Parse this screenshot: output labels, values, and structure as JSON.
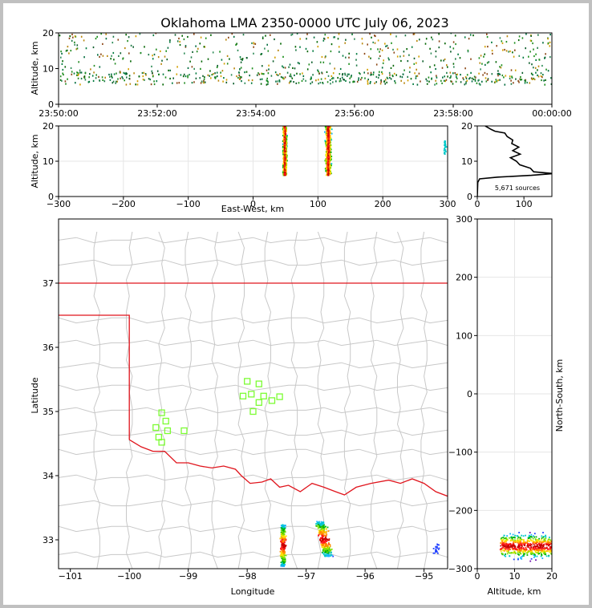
{
  "chart_data": [
    {
      "id": "time_height",
      "type": "scatter",
      "title": "Oklahoma LMA 2350-0000 UTC July 06, 2023",
      "xlabel": "",
      "ylabel": "Altitude, km",
      "x_ticks": [
        "23:50:00",
        "23:52:00",
        "23:54:00",
        "23:56:00",
        "23:58:00",
        "00:00:00"
      ],
      "xlim_minutes": [
        0,
        10
      ],
      "ylim": [
        0,
        20
      ],
      "y_ticks": [
        0,
        10,
        20
      ]
    },
    {
      "id": "ew_altitude",
      "type": "scatter",
      "xlabel": "East-West, km",
      "ylabel": "Altitude, km",
      "xlim": [
        -300,
        300
      ],
      "x_ticks": [
        -300,
        -200,
        -100,
        0,
        100,
        200,
        300
      ],
      "ylim": [
        0,
        20
      ],
      "y_ticks": [
        0,
        10,
        20
      ],
      "clusters": [
        {
          "x": 48,
          "ymin": 6,
          "ymax": 20
        },
        {
          "x": 115,
          "ymin": 6,
          "ymax": 20
        },
        {
          "x": 295,
          "ymin": 12,
          "ymax": 16
        }
      ]
    },
    {
      "id": "altitude_histogram",
      "type": "line",
      "annotation": "5,671 sources",
      "xlim": [
        0,
        160
      ],
      "x_ticks": [
        0,
        100
      ],
      "ylim": [
        0,
        20
      ],
      "y_ticks": [
        0,
        10,
        20
      ],
      "profile": [
        [
          20,
          17
        ],
        [
          19,
          30
        ],
        [
          18.5,
          42
        ],
        [
          18,
          55
        ],
        [
          17,
          68
        ],
        [
          16,
          72
        ],
        [
          15,
          78
        ],
        [
          14,
          85
        ],
        [
          13,
          80
        ],
        [
          12,
          88
        ],
        [
          11,
          75
        ],
        [
          10,
          80
        ],
        [
          9,
          95
        ],
        [
          8,
          110
        ],
        [
          7,
          125
        ],
        [
          6.5,
          160
        ],
        [
          6,
          120
        ],
        [
          5.5,
          40
        ],
        [
          5,
          5
        ],
        [
          4,
          1
        ],
        [
          0,
          0
        ]
      ]
    },
    {
      "id": "plan_view",
      "type": "scatter",
      "xlabel": "Longitude",
      "ylabel": "Latitude",
      "xlim": [
        -101.2,
        -94.6
      ],
      "x_ticks": [
        -101,
        -100,
        -99,
        -98,
        -97,
        -96,
        -95
      ],
      "ylim": [
        32.55,
        38.0
      ],
      "y_ticks": [
        33,
        34,
        35,
        36,
        37
      ],
      "stations": [
        [
          -99.45,
          34.98
        ],
        [
          -99.38,
          34.85
        ],
        [
          -99.55,
          34.75
        ],
        [
          -99.35,
          34.7
        ],
        [
          -99.5,
          34.6
        ],
        [
          -99.45,
          34.52
        ],
        [
          -99.07,
          34.7
        ],
        [
          -98.0,
          35.47
        ],
        [
          -97.8,
          35.43
        ],
        [
          -98.07,
          35.24
        ],
        [
          -97.93,
          35.27
        ],
        [
          -97.72,
          35.24
        ],
        [
          -97.58,
          35.17
        ],
        [
          -97.45,
          35.23
        ],
        [
          -97.8,
          35.14
        ],
        [
          -97.9,
          35.0
        ]
      ],
      "clusters": [
        {
          "lon": -97.4,
          "lat_min": 32.6,
          "lat_max": 33.25
        },
        {
          "lon": -96.7,
          "lat_min": 32.75,
          "lat_max": 33.3
        },
        {
          "lon": -94.8,
          "lat_min": 32.8,
          "lat_max": 32.95
        }
      ]
    },
    {
      "id": "ns_altitude",
      "type": "scatter",
      "xlabel": "Altitude, km",
      "ylabel": "North-South, km",
      "xlim": [
        0,
        20
      ],
      "x_ticks": [
        0,
        10,
        20
      ],
      "ylim": [
        -300,
        300
      ],
      "y_ticks": [
        -300,
        -200,
        -100,
        0,
        100,
        200,
        300
      ],
      "clusters": [
        {
          "ns_center": -260,
          "ns_halfwidth": 28,
          "alt_min": 6,
          "alt_max": 20
        }
      ]
    }
  ],
  "colors": {
    "state_border": "#e0141c",
    "county_lines": "#c8c8c8",
    "stations": "#7cfc33",
    "histogram": "#000000"
  }
}
